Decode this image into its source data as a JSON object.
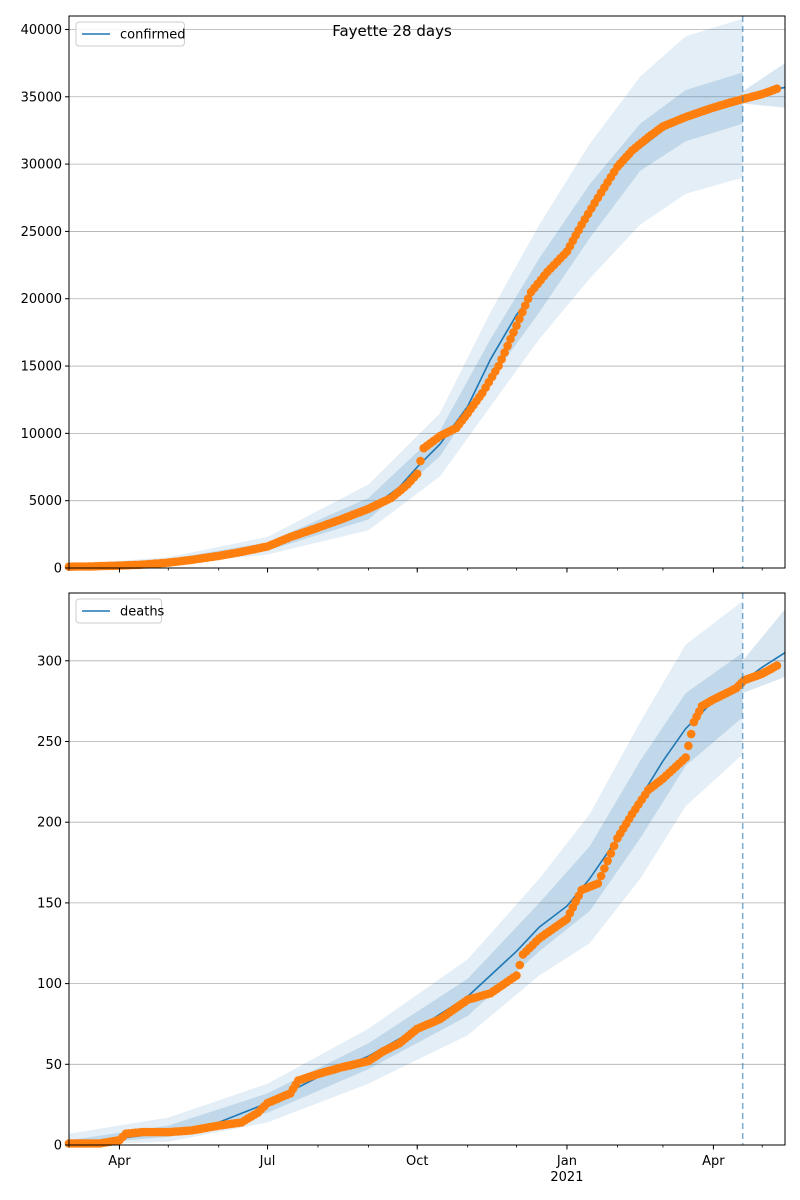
{
  "chart_data": [
    {
      "type": "line",
      "title": "Fayette 28 days",
      "legend": "top-left",
      "grid": "horizontal",
      "x_axis": {
        "range": [
          "2020-03-01",
          "2021-05-15"
        ],
        "major_ticks": [
          {
            "date": "2020-04-01",
            "label": "Apr"
          },
          {
            "date": "2020-07-01",
            "label": "Jul"
          },
          {
            "date": "2020-10-01",
            "label": "Oct"
          },
          {
            "date": "2021-01-01",
            "label": "Jan",
            "sublabel": "2021"
          },
          {
            "date": "2021-04-01",
            "label": "Apr"
          }
        ],
        "tick_labels_shown": false
      },
      "ylim": [
        0,
        41000
      ],
      "y_ticks": [
        0,
        5000,
        10000,
        15000,
        20000,
        25000,
        30000,
        35000,
        40000
      ],
      "forecast_start": "2021-04-19",
      "series": [
        {
          "name": "confirmed",
          "kind": "model-line",
          "color": "#1f77b4",
          "points": [
            [
              "2020-03-01",
              0
            ],
            [
              "2020-04-01",
              150
            ],
            [
              "2020-05-01",
              500
            ],
            [
              "2020-06-01",
              1000
            ],
            [
              "2020-07-01",
              1600
            ],
            [
              "2020-08-01",
              2800
            ],
            [
              "2020-09-01",
              4300
            ],
            [
              "2020-09-20",
              6000
            ],
            [
              "2020-10-01",
              7500
            ],
            [
              "2020-10-15",
              9200
            ],
            [
              "2020-11-01",
              12000
            ],
            [
              "2020-11-15",
              15500
            ],
            [
              "2020-12-01",
              18800
            ],
            [
              "2020-12-15",
              21000
            ],
            [
              "2021-01-01",
              23600
            ],
            [
              "2021-01-15",
              26500
            ],
            [
              "2021-02-01",
              29800
            ],
            [
              "2021-02-15",
              31200
            ],
            [
              "2021-03-01",
              32500
            ],
            [
              "2021-03-15",
              33500
            ],
            [
              "2021-04-01",
              34200
            ],
            [
              "2021-04-19",
              34900
            ],
            [
              "2021-05-01",
              35400
            ],
            [
              "2021-05-15",
              35700
            ]
          ]
        },
        {
          "name": "",
          "kind": "observed-points",
          "color": "#ff7f0e",
          "points": [
            [
              "2020-03-01",
              100
            ],
            [
              "2020-03-15",
              120
            ],
            [
              "2020-04-01",
              180
            ],
            [
              "2020-04-15",
              250
            ],
            [
              "2020-05-01",
              400
            ],
            [
              "2020-05-15",
              600
            ],
            [
              "2020-06-01",
              900
            ],
            [
              "2020-06-15",
              1200
            ],
            [
              "2020-07-01",
              1600
            ],
            [
              "2020-07-15",
              2300
            ],
            [
              "2020-08-01",
              3000
            ],
            [
              "2020-08-15",
              3600
            ],
            [
              "2020-09-01",
              4400
            ],
            [
              "2020-09-15",
              5200
            ],
            [
              "2020-09-25",
              6200
            ],
            [
              "2020-10-01",
              7000
            ],
            [
              "2020-10-05",
              8900
            ],
            [
              "2020-10-15",
              9800
            ],
            [
              "2020-10-25",
              10400
            ],
            [
              "2020-11-01",
              11500
            ],
            [
              "2020-11-10",
              13000
            ],
            [
              "2020-11-20",
              15000
            ],
            [
              "2020-12-01",
              18000
            ],
            [
              "2020-12-10",
              20500
            ],
            [
              "2020-12-20",
              22000
            ],
            [
              "2021-01-01",
              23500
            ],
            [
              "2021-01-10",
              25500
            ],
            [
              "2021-01-20",
              27500
            ],
            [
              "2021-02-01",
              29800
            ],
            [
              "2021-02-10",
              31000
            ],
            [
              "2021-02-20",
              32000
            ],
            [
              "2021-03-01",
              32800
            ],
            [
              "2021-03-15",
              33500
            ],
            [
              "2021-04-01",
              34200
            ],
            [
              "2021-04-15",
              34700
            ],
            [
              "2021-05-01",
              35200
            ],
            [
              "2021-05-10",
              35600
            ]
          ]
        },
        {
          "name": "",
          "kind": "band-inner",
          "color": "#1f77b4",
          "upper": [
            [
              "2020-03-01",
              150
            ],
            [
              "2020-05-01",
              650
            ],
            [
              "2020-07-01",
              1900
            ],
            [
              "2020-09-01",
              5200
            ],
            [
              "2020-10-15",
              10200
            ],
            [
              "2020-11-15",
              17000
            ],
            [
              "2020-12-15",
              23000
            ],
            [
              "2021-01-15",
              28500
            ],
            [
              "2021-02-15",
              33000
            ],
            [
              "2021-03-15",
              35500
            ],
            [
              "2021-04-19",
              36800
            ]
          ],
          "lower": [
            [
              "2020-03-01",
              0
            ],
            [
              "2020-05-01",
              400
            ],
            [
              "2020-07-01",
              1300
            ],
            [
              "2020-09-01",
              3600
            ],
            [
              "2020-10-15",
              8300
            ],
            [
              "2020-11-15",
              14000
            ],
            [
              "2020-12-15",
              19000
            ],
            [
              "2021-01-15",
              24500
            ],
            [
              "2021-02-15",
              29500
            ],
            [
              "2021-03-15",
              31700
            ],
            [
              "2021-04-19",
              33000
            ]
          ]
        },
        {
          "name": "",
          "kind": "band-outer",
          "color": "#1f77b4",
          "upper": [
            [
              "2020-03-01",
              250
            ],
            [
              "2020-05-01",
              800
            ],
            [
              "2020-07-01",
              2300
            ],
            [
              "2020-09-01",
              6200
            ],
            [
              "2020-10-15",
              11500
            ],
            [
              "2020-11-15",
              19000
            ],
            [
              "2020-12-15",
              25500
            ],
            [
              "2021-01-15",
              31500
            ],
            [
              "2021-02-15",
              36500
            ],
            [
              "2021-03-15",
              39500
            ],
            [
              "2021-04-19",
              40800
            ]
          ],
          "lower": [
            [
              "2020-03-01",
              0
            ],
            [
              "2020-05-01",
              250
            ],
            [
              "2020-07-01",
              1000
            ],
            [
              "2020-09-01",
              2800
            ],
            [
              "2020-10-15",
              6800
            ],
            [
              "2020-11-15",
              12000
            ],
            [
              "2020-12-15",
              17000
            ],
            [
              "2021-01-15",
              21500
            ],
            [
              "2021-02-15",
              25500
            ],
            [
              "2021-03-15",
              27800
            ],
            [
              "2021-04-19",
              29000
            ]
          ]
        },
        {
          "name": "",
          "kind": "forecast-band",
          "color": "#1f77b4",
          "upper": [
            [
              "2021-04-19",
              35400
            ],
            [
              "2021-05-15",
              37500
            ]
          ],
          "lower": [
            [
              "2021-04-19",
              34500
            ],
            [
              "2021-05-15",
              34200
            ]
          ]
        }
      ]
    },
    {
      "type": "line",
      "title": "",
      "legend": "top-left",
      "grid": "horizontal",
      "x_axis": {
        "range": [
          "2020-03-01",
          "2021-05-15"
        ],
        "major_ticks": [
          {
            "date": "2020-04-01",
            "label": "Apr"
          },
          {
            "date": "2020-07-01",
            "label": "Jul"
          },
          {
            "date": "2020-10-01",
            "label": "Oct"
          },
          {
            "date": "2021-01-01",
            "label": "Jan",
            "sublabel": "2021"
          },
          {
            "date": "2021-04-01",
            "label": "Apr"
          }
        ],
        "tick_labels_shown": true
      },
      "ylim": [
        0,
        342
      ],
      "y_ticks": [
        0,
        50,
        100,
        150,
        200,
        250,
        300
      ],
      "forecast_start": "2021-04-19",
      "series": [
        {
          "name": "deaths",
          "kind": "model-line",
          "color": "#1f77b4",
          "points": [
            [
              "2020-03-01",
              0
            ],
            [
              "2020-04-01",
              4
            ],
            [
              "2020-05-01",
              8
            ],
            [
              "2020-06-01",
              14
            ],
            [
              "2020-07-01",
              26
            ],
            [
              "2020-08-01",
              42
            ],
            [
              "2020-09-01",
              55
            ],
            [
              "2020-10-01",
              72
            ],
            [
              "2020-11-01",
              92
            ],
            [
              "2020-12-01",
              120
            ],
            [
              "2020-12-15",
              135
            ],
            [
              "2021-01-01",
              148
            ],
            [
              "2021-01-15",
              165
            ],
            [
              "2021-02-01",
              190
            ],
            [
              "2021-02-15",
              215
            ],
            [
              "2021-03-01",
              238
            ],
            [
              "2021-03-15",
              258
            ],
            [
              "2021-04-01",
              275
            ],
            [
              "2021-04-19",
              287
            ],
            [
              "2021-05-01",
              296
            ],
            [
              "2021-05-15",
              305
            ]
          ]
        },
        {
          "name": "",
          "kind": "observed-points",
          "color": "#ff7f0e",
          "points": [
            [
              "2020-03-01",
              1
            ],
            [
              "2020-03-20",
              1
            ],
            [
              "2020-04-01",
              3
            ],
            [
              "2020-04-05",
              7
            ],
            [
              "2020-04-15",
              8
            ],
            [
              "2020-05-01",
              8
            ],
            [
              "2020-05-15",
              9
            ],
            [
              "2020-06-01",
              12
            ],
            [
              "2020-06-15",
              14
            ],
            [
              "2020-06-25",
              20
            ],
            [
              "2020-07-01",
              26
            ],
            [
              "2020-07-15",
              32
            ],
            [
              "2020-07-20",
              40
            ],
            [
              "2020-08-01",
              44
            ],
            [
              "2020-08-15",
              48
            ],
            [
              "2020-09-01",
              52
            ],
            [
              "2020-09-10",
              58
            ],
            [
              "2020-09-20",
              63
            ],
            [
              "2020-10-01",
              72
            ],
            [
              "2020-10-15",
              78
            ],
            [
              "2020-11-01",
              90
            ],
            [
              "2020-11-15",
              94
            ],
            [
              "2020-12-01",
              105
            ],
            [
              "2020-12-05",
              118
            ],
            [
              "2020-12-15",
              128
            ],
            [
              "2021-01-01",
              140
            ],
            [
              "2021-01-10",
              158
            ],
            [
              "2021-01-20",
              162
            ],
            [
              "2021-02-01",
              190
            ],
            [
              "2021-02-10",
              205
            ],
            [
              "2021-02-20",
              220
            ],
            [
              "2021-03-01",
              227
            ],
            [
              "2021-03-15",
              240
            ],
            [
              "2021-03-20",
              262
            ],
            [
              "2021-03-25",
              272
            ],
            [
              "2021-04-01",
              276
            ],
            [
              "2021-04-15",
              283
            ],
            [
              "2021-04-20",
              288
            ],
            [
              "2021-05-01",
              292
            ],
            [
              "2021-05-10",
              297
            ]
          ]
        },
        {
          "name": "",
          "kind": "band-inner",
          "color": "#1f77b4",
          "upper": [
            [
              "2020-03-01",
              3
            ],
            [
              "2020-05-01",
              12
            ],
            [
              "2020-07-01",
              32
            ],
            [
              "2020-09-01",
              63
            ],
            [
              "2020-11-01",
              103
            ],
            [
              "2020-12-15",
              150
            ],
            [
              "2021-01-15",
              185
            ],
            [
              "2021-02-15",
              238
            ],
            [
              "2021-03-15",
              280
            ],
            [
              "2021-04-19",
              305
            ]
          ],
          "lower": [
            [
              "2020-03-01",
              0
            ],
            [
              "2020-05-01",
              5
            ],
            [
              "2020-07-01",
              20
            ],
            [
              "2020-09-01",
              47
            ],
            [
              "2020-11-01",
              80
            ],
            [
              "2020-12-15",
              120
            ],
            [
              "2021-01-15",
              145
            ],
            [
              "2021-02-15",
              190
            ],
            [
              "2021-03-15",
              235
            ],
            [
              "2021-04-19",
              265
            ]
          ]
        },
        {
          "name": "",
          "kind": "band-outer",
          "color": "#1f77b4",
          "upper": [
            [
              "2020-03-01",
              7
            ],
            [
              "2020-05-01",
              17
            ],
            [
              "2020-07-01",
              38
            ],
            [
              "2020-09-01",
              72
            ],
            [
              "2020-11-01",
              115
            ],
            [
              "2020-12-15",
              165
            ],
            [
              "2021-01-15",
              205
            ],
            [
              "2021-02-15",
              262
            ],
            [
              "2021-03-15",
              310
            ],
            [
              "2021-04-19",
              337
            ]
          ],
          "lower": [
            [
              "2020-03-01",
              0
            ],
            [
              "2020-05-01",
              2
            ],
            [
              "2020-07-01",
              14
            ],
            [
              "2020-09-01",
              38
            ],
            [
              "2020-11-01",
              68
            ],
            [
              "2020-12-15",
              105
            ],
            [
              "2021-01-15",
              125
            ],
            [
              "2021-02-15",
              165
            ],
            [
              "2021-03-15",
              210
            ],
            [
              "2021-04-19",
              242
            ]
          ]
        },
        {
          "name": "",
          "kind": "forecast-band",
          "color": "#1f77b4",
          "upper": [
            [
              "2021-04-19",
              300
            ],
            [
              "2021-05-15",
              332
            ]
          ],
          "lower": [
            [
              "2021-04-19",
              280
            ],
            [
              "2021-05-15",
              290
            ]
          ]
        }
      ]
    }
  ]
}
